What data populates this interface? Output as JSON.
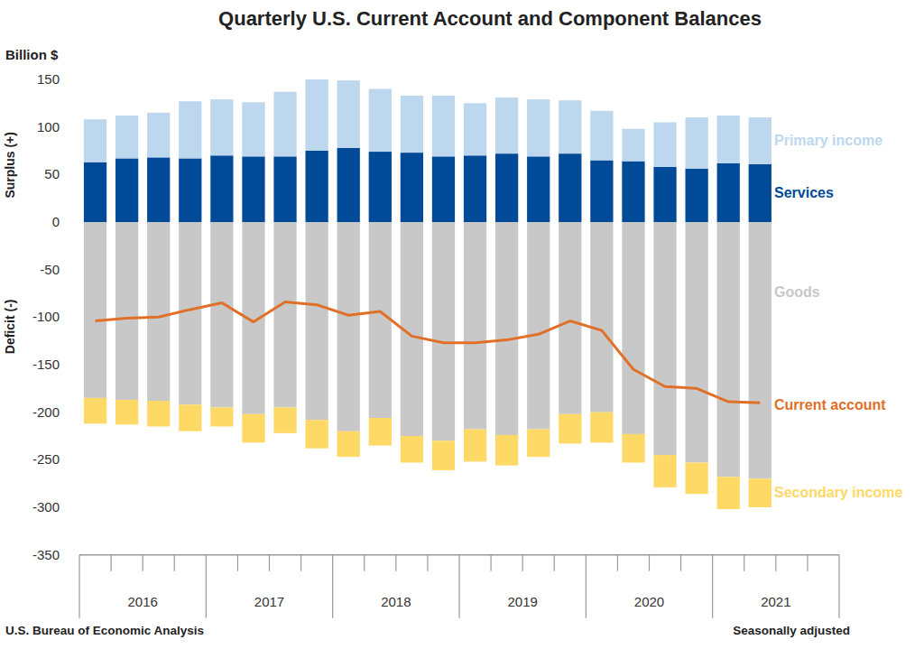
{
  "chart_data": {
    "type": "bar",
    "title": "Quarterly U.S. Current Account and Component Balances",
    "y_label": "Billion $",
    "annotations": [
      "Surplus (+)",
      "Deficit (-)"
    ],
    "source": "U.S. Bureau of Economic Analysis",
    "note": "Seasonally adjusted",
    "stacked": true,
    "grid": false,
    "categories": [
      null,
      null,
      null,
      null,
      null,
      null,
      null,
      null,
      null,
      null,
      null,
      null,
      null,
      null,
      null,
      null,
      null,
      null,
      null,
      null,
      null,
      null
    ],
    "groups": [
      "2016",
      "2017",
      "2018",
      "2019",
      "2020",
      "2021"
    ],
    "ylim": [
      -350,
      150
    ],
    "yticks": [
      -350,
      -300,
      -250,
      -200,
      -150,
      -100,
      -50,
      0,
      50,
      100,
      150
    ],
    "series": [
      {
        "name": "Services",
        "type": "bar",
        "color": "#004a97",
        "values": [
          63,
          67,
          68,
          67,
          70,
          69,
          69,
          75,
          78,
          74,
          73,
          69,
          70,
          72,
          69,
          72,
          65,
          64,
          58,
          56,
          62,
          61
        ]
      },
      {
        "name": "Primary income",
        "type": "bar",
        "color": "#bdd7ee",
        "values": [
          45,
          45,
          47,
          60,
          59,
          57,
          68,
          75,
          71,
          66,
          60,
          64,
          55,
          59,
          60,
          56,
          52,
          34,
          47,
          54,
          50,
          49
        ]
      },
      {
        "name": "Goods",
        "type": "bar",
        "color": "#c8c8c8",
        "values": [
          -185,
          -187,
          -188,
          -192,
          -195,
          -202,
          -195,
          -208,
          -220,
          -206,
          -225,
          -230,
          -218,
          -224,
          -218,
          -202,
          -200,
          -223,
          -245,
          -253,
          -268,
          -270
        ]
      },
      {
        "name": "Secondary income",
        "type": "bar",
        "color": "#ffd966",
        "values": [
          -27,
          -26,
          -27,
          -28,
          -20,
          -30,
          -27,
          -30,
          -27,
          -29,
          -28,
          -31,
          -34,
          -32,
          -29,
          -31,
          -32,
          -30,
          -34,
          -33,
          -34,
          -30
        ]
      },
      {
        "name": "Current account",
        "type": "line",
        "color": "#e07028",
        "values": [
          -104,
          -101,
          -100,
          -92,
          -85,
          -105,
          -84,
          -87,
          -98,
          -94,
          -120,
          -127,
          -127,
          -124,
          -118,
          -104,
          -114,
          -155,
          -173,
          -175,
          -189,
          -190
        ]
      }
    ]
  }
}
